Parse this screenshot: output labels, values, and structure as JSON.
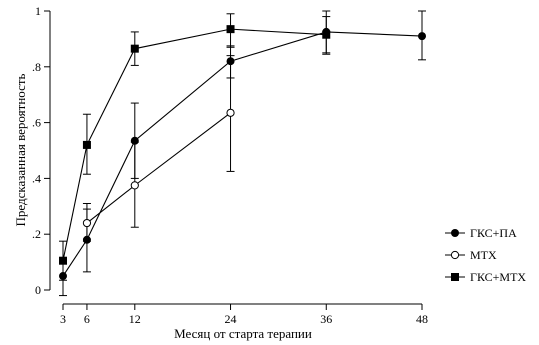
{
  "chart_data": {
    "type": "line",
    "xlabel": "Месяц от старта терапии",
    "ylabel": "Предсказанная вероятность",
    "xlim": [
      3,
      48
    ],
    "ylim": [
      0,
      1
    ],
    "x_ticks": [
      3,
      6,
      12,
      24,
      36,
      48
    ],
    "x_tick_labels": [
      "3",
      "6",
      "12",
      "24",
      "36",
      "48"
    ],
    "y_ticks": [
      0,
      0.2,
      0.4,
      0.6,
      0.8,
      1
    ],
    "y_tick_labels": [
      "0",
      ".2",
      ".4",
      ".6",
      ".8",
      "1"
    ],
    "grid": false,
    "legend_position": "right",
    "series": [
      {
        "name": "ГКС+ПА",
        "marker": "filled-circle",
        "x": [
          3,
          6,
          12,
          24,
          36,
          48
        ],
        "y": [
          0.05,
          0.18,
          0.535,
          0.82,
          0.925,
          0.91
        ],
        "err_low": [
          -0.02,
          0.065,
          0.4,
          0.76,
          0.85,
          0.825
        ],
        "err_high": [
          0.115,
          0.29,
          0.67,
          0.875,
          0.98,
          1.0
        ]
      },
      {
        "name": "МТХ",
        "marker": "open-circle",
        "x": [
          6,
          12,
          24
        ],
        "y": [
          0.24,
          0.375,
          0.635
        ],
        "err_low": [
          0.175,
          0.225,
          0.425
        ],
        "err_high": [
          0.31,
          0.53,
          0.84
        ]
      },
      {
        "name": "ГКС+МТХ",
        "marker": "filled-square",
        "x": [
          3,
          6,
          12,
          24,
          36
        ],
        "y": [
          0.105,
          0.52,
          0.865,
          0.935,
          0.915
        ],
        "err_low": [
          0.035,
          0.415,
          0.805,
          0.87,
          0.845
        ],
        "err_high": [
          0.175,
          0.63,
          0.925,
          0.99,
          1.0
        ]
      }
    ]
  }
}
